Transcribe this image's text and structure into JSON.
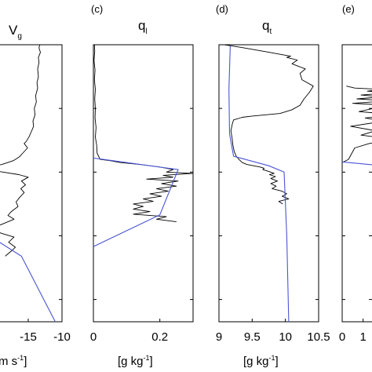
{
  "chart_data": [
    {
      "type": "line",
      "panel": "",
      "title": "V",
      "title_sub": "g",
      "xlabel": "m s",
      "xlabel_sup": "-1",
      "xlim": [
        -21.5,
        -10
      ],
      "xticks": [
        -15,
        -10
      ],
      "xtick_labels": [
        "-15",
        "-10"
      ],
      "series": [
        {
          "kind": "observed",
          "x": [
            -13.3,
            -13.4,
            -13.2,
            -13.5,
            -13.4,
            -13.6,
            -13.5,
            -13.7,
            -13.6,
            -13.9,
            -13.8,
            -14.1,
            -14.0,
            -14.3,
            -14.2,
            -14.6,
            -14.9,
            -15.3,
            -15.6,
            -15.1,
            -15.8,
            -16.3,
            -17.2,
            -18.9,
            -21.0,
            -20.5,
            -16.4,
            -15.0,
            -16.0,
            -15.4,
            -16.1,
            -15.6,
            -16.3,
            -16.8,
            -16.5,
            -17.5,
            -18.0,
            -17.1,
            -18.9,
            -20.5,
            -19.0,
            -17.1,
            -17.9,
            -16.9,
            -17.5,
            -18.4
          ],
          "y": [
            1000,
            995,
            988,
            980,
            972,
            962,
            950,
            940,
            932,
            920,
            910,
            900,
            890,
            880,
            872,
            862,
            855,
            848,
            845,
            838,
            830,
            824,
            818,
            812,
            808,
            803,
            796,
            792,
            786,
            780,
            774,
            768,
            760,
            753,
            746,
            738,
            732,
            726,
            718,
            712,
            704,
            698,
            690,
            682,
            676,
            668
          ]
        },
        {
          "kind": "model",
          "x": [
            -21.5,
            -16.0,
            -11.0
          ],
          "y": [
            705,
            668,
            565
          ]
        }
      ]
    },
    {
      "type": "line",
      "panel": "(c)",
      "title": "q",
      "title_sub": "l",
      "xlabel": "g kg",
      "xlabel_sup": "-1",
      "xlim": [
        0,
        0.3
      ],
      "xticks": [
        0,
        0.2
      ],
      "xtick_labels": [
        "0",
        "0.2"
      ],
      "series": [
        {
          "kind": "observed",
          "x": [
            0.003,
            0.004,
            0.002,
            0.005,
            0.003,
            0.006,
            0.004,
            0.006,
            0.005,
            0.008,
            0.006,
            0.01,
            0.011,
            0.02,
            0.05,
            0.08,
            0.14,
            0.2,
            0.24,
            0.22,
            0.3,
            0.21,
            0.24,
            0.16,
            0.255,
            0.205,
            0.25,
            0.19,
            0.225,
            0.17,
            0.205,
            0.15,
            0.18,
            0.12,
            0.15,
            0.12,
            0.17,
            0.12,
            0.22,
            0.19,
            0.25
          ],
          "y": [
            1000,
            990,
            975,
            960,
            945,
            930,
            915,
            900,
            885,
            870,
            855,
            842,
            830,
            820,
            818,
            815,
            812,
            808,
            804,
            800,
            798,
            795,
            792,
            789,
            786,
            782,
            778,
            774,
            770,
            766,
            762,
            758,
            754,
            750,
            746,
            742,
            738,
            734,
            730,
            726,
            722
          ]
        },
        {
          "kind": "model",
          "x": [
            0.0,
            0.255,
            0.2,
            0.0
          ],
          "y": [
            822,
            804,
            733,
            683
          ]
        }
      ]
    },
    {
      "type": "line",
      "panel": "(d)",
      "title": "q",
      "title_sub": "t",
      "xlabel": "g kg",
      "xlabel_sup": "-1",
      "xlim": [
        9,
        10.5
      ],
      "xticks": [
        9,
        9.5,
        10,
        10.5
      ],
      "xtick_labels": [
        "9",
        "9.5",
        "10",
        "10.5"
      ],
      "series": [
        {
          "kind": "observed",
          "x": [
            9.08,
            9.2,
            9.38,
            9.6,
            9.76,
            9.92,
            10.08,
            10.02,
            10.18,
            10.1,
            10.3,
            10.22,
            10.25,
            10.42,
            10.36,
            10.28,
            10.22,
            10.1,
            9.92,
            9.7,
            9.5,
            9.35,
            9.22,
            9.2,
            9.18,
            9.2,
            9.21,
            9.23,
            9.26,
            9.3,
            9.35,
            9.42,
            9.52,
            9.62,
            9.68,
            9.66,
            9.72,
            9.78,
            9.83,
            9.76,
            9.85,
            9.78,
            9.88,
            9.78,
            9.86,
            9.8,
            9.95,
            10.02,
            9.95,
            10.05,
            9.9,
            9.96
          ],
          "y": [
            1000,
            998,
            995,
            991,
            988,
            985,
            982,
            980,
            976,
            970,
            962,
            955,
            945,
            935,
            925,
            915,
            905,
            898,
            892,
            890,
            888,
            886,
            882,
            875,
            865,
            852,
            842,
            832,
            825,
            820,
            815,
            812,
            810,
            808,
            806,
            804,
            802,
            800,
            798,
            796,
            793,
            790,
            786,
            782,
            778,
            774,
            770,
            766,
            762,
            758,
            754,
            750
          ]
        },
        {
          "kind": "model",
          "x": [
            9.17,
            9.15,
            9.16,
            9.22,
            9.75,
            9.98,
            10.02,
            10.05
          ],
          "y": [
            998,
            930,
            860,
            825,
            810,
            800,
            700,
            565
          ]
        }
      ]
    },
    {
      "type": "line",
      "panel": "(e)",
      "title": "",
      "xlabel": "",
      "xlim": [
        0,
        3
      ],
      "xticks": [
        0,
        1
      ],
      "xtick_labels": [
        "0",
        "1"
      ],
      "series": [
        {
          "kind": "observed",
          "x": [
            0.2,
            0.6,
            1.8,
            1.2,
            2.5,
            0.9,
            1.9,
            0.7,
            2.2,
            0.5,
            2.8,
            1.5,
            0.8,
            2.6,
            1.1,
            2.0,
            0.4,
            1.6,
            0.9,
            2.4,
            1.3,
            0.6,
            0.3,
            0.0
          ],
          "y": [
            935,
            932,
            930,
            927,
            925,
            921,
            918,
            915,
            912,
            908,
            904,
            900,
            895,
            890,
            885,
            880,
            872,
            865,
            858,
            852,
            845,
            838,
            820,
            815
          ]
        },
        {
          "kind": "model",
          "x": [
            0.0,
            1.6,
            3.0
          ],
          "y": [
            816,
            811,
            809
          ]
        }
      ]
    }
  ]
}
